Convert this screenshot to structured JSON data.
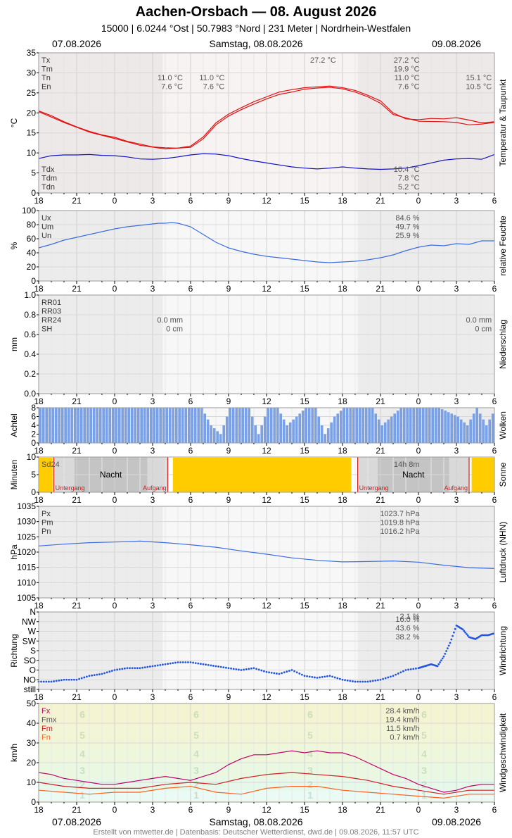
{
  "header": {
    "title": "Aachen-Orsbach  —  08. August 2026",
    "subtitle": "15000  |  6.0244 °Ost  |  50.7983 °Nord  |  231 Meter  |  Nordrhein-Westfalen",
    "date_left": "07.08.2026",
    "date_center": "Samstag, 08.08.2026",
    "date_right": "09.08.2026"
  },
  "footer": "Erstellt von mtwetter.de | Datenbasis: Deutscher Wetterdienst, dwd.de | 09.08.2026, 11:57 UTC",
  "colors": {
    "temp": "#e01010",
    "dew": "#1010c8",
    "humid": "#3c6ee0",
    "cloud": "#7aa0e6",
    "sun": "#ffcc00",
    "night": "#a0a0a0",
    "sunline": "#cc2222",
    "gust": "#c0006a",
    "mean": "#d02020",
    "min": "#ff6020",
    "grid": "#d8d8d8"
  },
  "chart_data": [
    {
      "id": "temp",
      "type": "line",
      "ylabel": "°C",
      "right_label": "Temperatur & Taupunkt",
      "ylim": [
        0,
        35
      ],
      "yticks": [
        "0",
        "5",
        "10",
        "15",
        "20",
        "25",
        "30",
        "35"
      ],
      "x_tick_labels": [
        "18",
        "21",
        "0",
        "3",
        "6",
        "9",
        "12",
        "15",
        "18",
        "21",
        "0",
        "3",
        "6"
      ],
      "x_hours": [
        0,
        36
      ],
      "series": [
        {
          "name": "T",
          "color": "#e01010",
          "x": [
            0,
            1,
            2,
            3,
            4,
            5,
            6,
            7,
            8,
            9,
            10,
            11,
            12,
            13,
            14,
            15,
            16,
            17,
            18,
            19,
            20,
            21,
            22,
            23,
            24,
            25,
            26,
            27,
            28,
            29,
            30,
            31,
            32,
            33,
            34,
            35,
            36
          ],
          "values": [
            20.5,
            19.3,
            17.8,
            16.5,
            15.4,
            14.5,
            13.9,
            12.9,
            12.2,
            11.5,
            11.3,
            11.2,
            11.7,
            14.0,
            17.5,
            19.7,
            21.3,
            22.8,
            24.0,
            25.2,
            25.8,
            26.3,
            26.5,
            26.7,
            26.3,
            25.6,
            24.4,
            23.0,
            20.0,
            18.5,
            18.3,
            18.6,
            18.5,
            18.8,
            18.2,
            17.5,
            17.8
          ]
        },
        {
          "name": "T2",
          "color": "#e01010",
          "x": [
            0,
            2,
            4,
            6,
            8,
            10,
            12,
            13,
            14,
            15,
            16,
            17,
            18,
            19,
            20,
            21,
            22,
            23,
            24,
            25,
            26,
            27,
            28,
            30,
            32,
            33,
            34,
            35,
            36
          ],
          "values": [
            20.3,
            17.6,
            15.2,
            13.6,
            11.9,
            11.0,
            11.4,
            13.5,
            17.0,
            19.2,
            20.8,
            22.2,
            23.5,
            24.6,
            25.2,
            25.9,
            26.2,
            26.4,
            26.0,
            25.2,
            24.0,
            22.4,
            19.6,
            17.9,
            17.8,
            17.6,
            17.0,
            17.2,
            17.6
          ]
        },
        {
          "name": "Td",
          "color": "#1010c8",
          "x": [
            0,
            1,
            2,
            3,
            4,
            5,
            6,
            7,
            8,
            9,
            10,
            11,
            12,
            13,
            14,
            15,
            16,
            17,
            18,
            19,
            20,
            21,
            22,
            23,
            24,
            25,
            26,
            27,
            28,
            29,
            30,
            31,
            32,
            33,
            34,
            35,
            36
          ],
          "values": [
            8.6,
            9.3,
            9.5,
            9.5,
            9.6,
            9.4,
            9.3,
            9.0,
            8.5,
            8.4,
            8.6,
            9.0,
            9.5,
            9.8,
            9.7,
            9.3,
            8.6,
            8.0,
            7.5,
            7.0,
            6.5,
            6.2,
            6.0,
            6.2,
            6.5,
            6.2,
            6.0,
            5.9,
            6.0,
            6.2,
            6.8,
            7.5,
            8.2,
            8.5,
            8.6,
            8.4,
            9.6
          ]
        }
      ],
      "labels_left": [
        "Tx",
        "Tm",
        "Tn",
        "En"
      ],
      "labels_left_bottom": [
        "Tdx",
        "Tdm",
        "Tdn"
      ],
      "annotations": [
        {
          "text": "11.0 °C",
          "hour": 11.5,
          "row": 2
        },
        {
          "text": "7.6 °C",
          "hour": 11.5,
          "row": 3
        },
        {
          "text": "11.0 °C",
          "hour": 14.8,
          "row": 2
        },
        {
          "text": "7.6 °C",
          "hour": 14.8,
          "row": 3
        },
        {
          "text": "27.2 °C",
          "hour": 23.6,
          "row": 0
        },
        {
          "text": "27.2 °C",
          "hour": 30.2,
          "row": 0
        },
        {
          "text": "19.9 °C",
          "hour": 30.2,
          "row": 1
        },
        {
          "text": "11.0 °C",
          "hour": 30.2,
          "row": 2
        },
        {
          "text": "7.6 °C",
          "hour": 30.2,
          "row": 3
        },
        {
          "text": "15.1 °C",
          "hour": 35.9,
          "row": 2
        },
        {
          "text": "10.5 °C",
          "hour": 35.9,
          "row": 3
        }
      ],
      "annotations_bottom": [
        {
          "text": "10.4 °C",
          "hour": 30.2,
          "row": 0
        },
        {
          "text": "7.8 °C",
          "hour": 30.2,
          "row": 1
        },
        {
          "text": "5.2 °C",
          "hour": 30.2,
          "row": 2
        }
      ]
    },
    {
      "id": "humid",
      "type": "line",
      "ylabel": "%",
      "right_label": "relative Feuchte",
      "ylim": [
        0,
        100
      ],
      "yticks": [
        "0",
        "20",
        "40",
        "60",
        "80",
        "100"
      ],
      "x_tick_labels": [
        "18",
        "21",
        "0",
        "3",
        "6",
        "9",
        "12",
        "15",
        "18",
        "21",
        "0",
        "3",
        "6"
      ],
      "series": [
        {
          "name": "U",
          "color": "#3c6ee0",
          "x": [
            0,
            1,
            2,
            3,
            4,
            5,
            6,
            7,
            8,
            9,
            9.5,
            10,
            10.5,
            11,
            12,
            13,
            14,
            15,
            16,
            17,
            18,
            19,
            20,
            21,
            22,
            23,
            24,
            25,
            26,
            27,
            28,
            29,
            30,
            31,
            32,
            33,
            34,
            35,
            36
          ],
          "values": [
            47,
            52,
            58,
            62,
            66,
            70,
            74,
            77,
            79,
            81,
            82,
            82,
            83,
            82,
            77,
            66,
            55,
            47,
            42,
            38,
            35,
            33,
            31,
            29,
            27,
            26,
            27,
            28,
            30,
            33,
            37,
            43,
            48,
            51,
            50,
            53,
            52,
            57,
            57
          ]
        }
      ],
      "labels_left": [
        "Ux",
        "Um",
        "Un"
      ],
      "annotations": [
        {
          "text": "84.6 %",
          "hour": 30.2,
          "row": 0
        },
        {
          "text": "49.7 %",
          "hour": 30.2,
          "row": 1
        },
        {
          "text": "25.9 %",
          "hour": 30.2,
          "row": 2
        }
      ]
    },
    {
      "id": "precip",
      "type": "line",
      "ylabel": "mm",
      "right_label": "Niederschlag",
      "ylim": [
        0,
        1.0
      ],
      "yticks": [
        "0.0",
        "0.2",
        "0.4",
        "0.6",
        "0.8",
        "1.0"
      ],
      "x_tick_labels": [
        "18",
        "21",
        "0",
        "3",
        "6",
        "9",
        "12",
        "15",
        "18",
        "21",
        "0",
        "3",
        "6"
      ],
      "labels_left": [
        "RR01",
        "RR03",
        "RR24",
        "SH"
      ],
      "annotations": [
        {
          "text": "0.0 mm",
          "hour": 11.5,
          "row": 2
        },
        {
          "text": "0 cm",
          "hour": 11.5,
          "row": 3
        },
        {
          "text": "0.0 mm",
          "hour": 35.9,
          "row": 2
        },
        {
          "text": "0 cm",
          "hour": 35.9,
          "row": 3
        }
      ]
    },
    {
      "id": "clouds",
      "type": "bar",
      "ylabel": "Achtel",
      "right_label": "Wolken",
      "ylim": [
        0,
        8
      ],
      "yticks": [
        "0",
        "2",
        "4",
        "6",
        "8"
      ],
      "x_tick_labels": [
        "18",
        "21",
        "0",
        "3",
        "6",
        "9",
        "12",
        "15",
        "18",
        "21",
        "0",
        "3",
        "6"
      ],
      "x": [
        0,
        1.5,
        3,
        4.5,
        6,
        7.5,
        9,
        10.5,
        12,
        12.75,
        13.5,
        14.25,
        15,
        16.5,
        17.25,
        18,
        18.75,
        19.5,
        21,
        21.75,
        22.5,
        23.25,
        24,
        24.75,
        25.5,
        26.25,
        27,
        27.75,
        28.5,
        30,
        31.5,
        33,
        33.75,
        34.5,
        35.25,
        36
      ],
      "values": [
        8,
        8,
        8,
        8,
        8,
        8,
        8,
        8,
        8,
        8,
        4,
        2,
        8,
        8,
        2,
        8,
        8,
        4,
        8,
        8,
        2,
        6,
        8,
        8,
        8,
        8,
        4,
        6,
        8,
        8,
        8,
        6,
        4,
        8,
        4,
        8
      ]
    },
    {
      "id": "sun",
      "type": "bar",
      "ylabel": "Minuten",
      "right_label": "Sonne",
      "ylim": [
        0,
        10
      ],
      "yticks": [
        "0",
        "5",
        "10"
      ],
      "x_tick_labels": [
        "18",
        "21",
        "0",
        "3",
        "6",
        "9",
        "12",
        "15",
        "18",
        "21",
        "0",
        "3",
        "6"
      ],
      "sun_hours": [
        [
          0,
          1.1
        ],
        [
          10.6,
          24.7
        ],
        [
          34.2,
          36
        ]
      ],
      "nights": [
        [
          1.2,
          10.2
        ],
        [
          25.2,
          34
        ]
      ],
      "labels_left": [
        "Sd24"
      ],
      "night_label": "Nacht",
      "sunset_label": "Untergang",
      "sunrise_label": "Aufgang",
      "duration": "14h 8m"
    },
    {
      "id": "pressure",
      "type": "line",
      "ylabel": "hPa",
      "right_label": "Luftdruck (NHN)",
      "ylim": [
        1005,
        1035
      ],
      "yticks": [
        "1005",
        "1010",
        "1015",
        "1020",
        "1025",
        "1030",
        "1035"
      ],
      "x_tick_labels": [
        "18",
        "21",
        "0",
        "3",
        "6",
        "9",
        "12",
        "15",
        "18",
        "21",
        "0",
        "3",
        "6"
      ],
      "series": [
        {
          "name": "P",
          "color": "#3c6ee0",
          "x": [
            0,
            2,
            4,
            6,
            8,
            10,
            12,
            14,
            16,
            18,
            20,
            22,
            24,
            26,
            28,
            30,
            32,
            34,
            36
          ],
          "values": [
            1022.0,
            1022.6,
            1023.1,
            1023.3,
            1023.6,
            1023.1,
            1022.4,
            1021.6,
            1020.4,
            1019.3,
            1018.1,
            1017.3,
            1016.8,
            1016.9,
            1017.1,
            1016.7,
            1015.7,
            1014.9,
            1014.6
          ]
        }
      ],
      "labels_left": [
        "Px",
        "Pm",
        "Pn"
      ],
      "annotations": [
        {
          "text": "1023.7 hPa",
          "hour": 30.2,
          "row": 0
        },
        {
          "text": "1019.8 hPa",
          "hour": 30.2,
          "row": 1
        },
        {
          "text": "1016.2 hPa",
          "hour": 30.2,
          "row": 2
        }
      ]
    },
    {
      "id": "winddir",
      "type": "scatter",
      "ylabel": "Richtung",
      "right_label": "Windrichtung",
      "ylim": [
        0,
        8
      ],
      "yticks": [
        "still",
        "NO",
        "O",
        "SO",
        "S",
        "SW",
        "W",
        "NW",
        "N"
      ],
      "x_tick_labels": [
        "18",
        "21",
        "0",
        "3",
        "6",
        "9",
        "12",
        "15",
        "18",
        "21",
        "0",
        "3",
        "6"
      ],
      "x": [
        0,
        1,
        2,
        3,
        4,
        5,
        6,
        7,
        8,
        9,
        10,
        11,
        12,
        13,
        14,
        15,
        16,
        17,
        18,
        19,
        20,
        21,
        22,
        23,
        24,
        25,
        26,
        27,
        28,
        29,
        30,
        30.5,
        31,
        31.5,
        32,
        32.5,
        33,
        33.5,
        34,
        34.5,
        35,
        35.5,
        36
      ],
      "values": [
        0.8,
        0.8,
        1.0,
        1.0,
        1.4,
        1.6,
        2.0,
        2.2,
        2.2,
        2.4,
        2.6,
        2.8,
        2.8,
        2.6,
        2.4,
        2.2,
        2.0,
        2.2,
        1.8,
        1.6,
        2.0,
        1.4,
        1.2,
        1.4,
        1.0,
        0.8,
        0.8,
        1.0,
        1.4,
        2.0,
        2.2,
        2.4,
        2.6,
        2.4,
        3.4,
        4.8,
        6.6,
        6.2,
        5.4,
        5.2,
        5.6,
        5.6,
        5.8
      ],
      "labels_right_top": [
        "2.1 %"
      ],
      "annotations": [
        {
          "text": "16.0 %",
          "hour": 30.2,
          "row": 0
        },
        {
          "text": "43.6 %",
          "hour": 30.2,
          "row": 1
        },
        {
          "text": "38.2 %",
          "hour": 30.2,
          "row": 2
        }
      ]
    },
    {
      "id": "windspeed",
      "type": "line",
      "ylabel": "km/h",
      "right_label": "Windgeschwindigkeit",
      "ylim": [
        0,
        50
      ],
      "yticks": [
        "0",
        "10",
        "20",
        "30",
        "40",
        "50"
      ],
      "x_tick_labels": [
        "18",
        "21",
        "0",
        "3",
        "6",
        "9",
        "12",
        "15",
        "18",
        "21",
        "0",
        "3",
        "6"
      ],
      "series": [
        {
          "name": "Fx",
          "color": "#c0006a",
          "x": [
            0,
            1,
            2,
            3,
            4,
            5,
            6,
            7,
            8,
            9,
            10,
            11,
            12,
            13,
            14,
            15,
            16,
            17,
            18,
            19,
            20,
            21,
            22,
            23,
            24,
            25,
            26,
            27,
            28,
            29,
            30,
            31,
            32,
            33,
            34,
            35,
            36
          ],
          "values": [
            15,
            14,
            12,
            11,
            10,
            9,
            9,
            10,
            11,
            12,
            13,
            12,
            11,
            13,
            15,
            19,
            22,
            24,
            24,
            25,
            26,
            25,
            26,
            25,
            25,
            23,
            20,
            17,
            14,
            12,
            9,
            7,
            5,
            6,
            8,
            9,
            9
          ]
        },
        {
          "name": "Fm",
          "color": "#d02020",
          "x": [
            0,
            2,
            4,
            6,
            8,
            10,
            12,
            14,
            16,
            18,
            20,
            22,
            24,
            26,
            28,
            30,
            32,
            34,
            36
          ],
          "values": [
            10,
            8,
            7,
            7,
            7,
            9,
            10,
            9,
            12,
            14,
            15,
            14,
            13,
            11,
            8,
            6,
            4,
            6,
            6
          ]
        },
        {
          "name": "Fn",
          "color": "#ff6020",
          "x": [
            0,
            2,
            4,
            6,
            8,
            10,
            12,
            14,
            16,
            18,
            20,
            22,
            24,
            26,
            28,
            30,
            32,
            34,
            36
          ],
          "values": [
            6,
            5,
            4,
            5,
            5,
            7,
            8,
            5,
            4,
            7,
            8,
            8,
            6,
            5,
            4,
            3,
            2,
            4,
            4
          ]
        }
      ],
      "labels_left": [
        "Fx",
        "Fmx",
        "Fm",
        "Fn"
      ],
      "beaufort": [
        "1",
        "2",
        "3",
        "4",
        "5",
        "6"
      ],
      "beaufort_kmh": [
        1,
        6,
        12,
        20,
        29,
        39,
        50
      ],
      "annotations": [
        {
          "text": "28.4 km/h",
          "hour": 30.2,
          "row": 0
        },
        {
          "text": "19.4 km/h",
          "hour": 30.2,
          "row": 1
        },
        {
          "text": "11.5 km/h",
          "hour": 30.2,
          "row": 2
        },
        {
          "text": "0.7 km/h",
          "hour": 30.2,
          "row": 3
        }
      ]
    }
  ]
}
